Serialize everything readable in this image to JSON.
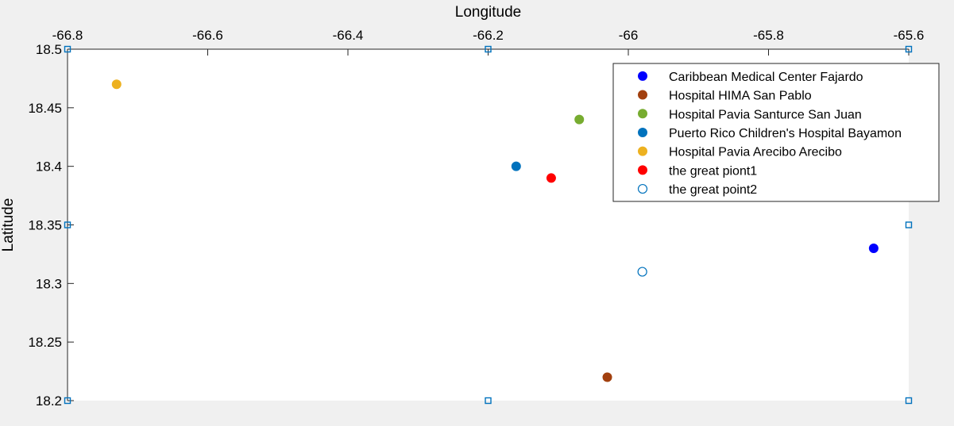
{
  "chart_data": {
    "type": "scatter",
    "xlabel": "Longitude",
    "ylabel": "Latitude",
    "x_axis_location": "top",
    "y_axis_direction": "normal",
    "xlim": [
      -66.8,
      -65.6
    ],
    "ylim": [
      18.2,
      18.5
    ],
    "xticks": [
      -66.8,
      -66.6,
      -66.4,
      -66.2,
      -66,
      -65.8,
      -65.6
    ],
    "xtick_labels": [
      "-66.8",
      "-66.6",
      "-66.4",
      "-66.2",
      "-66",
      "-65.8",
      "-65.6"
    ],
    "yticks": [
      18.2,
      18.25,
      18.3,
      18.35,
      18.4,
      18.45,
      18.5
    ],
    "ytick_labels": [
      "18.2",
      "18.25",
      "18.3",
      "18.35",
      "18.4",
      "18.45",
      "18.5"
    ],
    "grid": false,
    "legend_position": "top-right",
    "series": [
      {
        "name": "Caribbean Medical Center  Fajardo",
        "color": "#0000ff",
        "marker": "filled-circle",
        "points": [
          {
            "x": -65.65,
            "y": 18.33
          }
        ]
      },
      {
        "name": "Hospital HIMA  San Pablo",
        "color": "#a2400f",
        "marker": "filled-circle",
        "points": [
          {
            "x": -66.03,
            "y": 18.22
          }
        ]
      },
      {
        "name": "Hospital Pavia Santurce  San Juan",
        "color": "#77ac30",
        "marker": "filled-circle",
        "points": [
          {
            "x": -66.07,
            "y": 18.44
          }
        ]
      },
      {
        "name": "Puerto Rico Children's Hospital  Bayamon",
        "color": "#0072bd",
        "marker": "filled-circle",
        "points": [
          {
            "x": -66.16,
            "y": 18.4
          }
        ]
      },
      {
        "name": "Hospital Pavia Arecibo  Arecibo",
        "color": "#edb120",
        "marker": "filled-circle",
        "points": [
          {
            "x": -66.73,
            "y": 18.47
          }
        ]
      },
      {
        "name": "the great piont1",
        "color": "#ff0000",
        "marker": "filled-circle",
        "points": [
          {
            "x": -66.11,
            "y": 18.39
          }
        ]
      },
      {
        "name": "the great point2",
        "color": "#0072bd",
        "marker": "open-circle",
        "points": [
          {
            "x": -65.98,
            "y": 18.31
          }
        ]
      }
    ],
    "square_markers": {
      "color": "#0072bd",
      "points": [
        {
          "x": -66.8,
          "y": 18.5
        },
        {
          "x": -66.2,
          "y": 18.5
        },
        {
          "x": -65.6,
          "y": 18.5
        },
        {
          "x": -66.8,
          "y": 18.35
        },
        {
          "x": -65.6,
          "y": 18.35
        },
        {
          "x": -66.8,
          "y": 18.2
        },
        {
          "x": -66.2,
          "y": 18.2
        },
        {
          "x": -65.6,
          "y": 18.2
        }
      ]
    }
  }
}
